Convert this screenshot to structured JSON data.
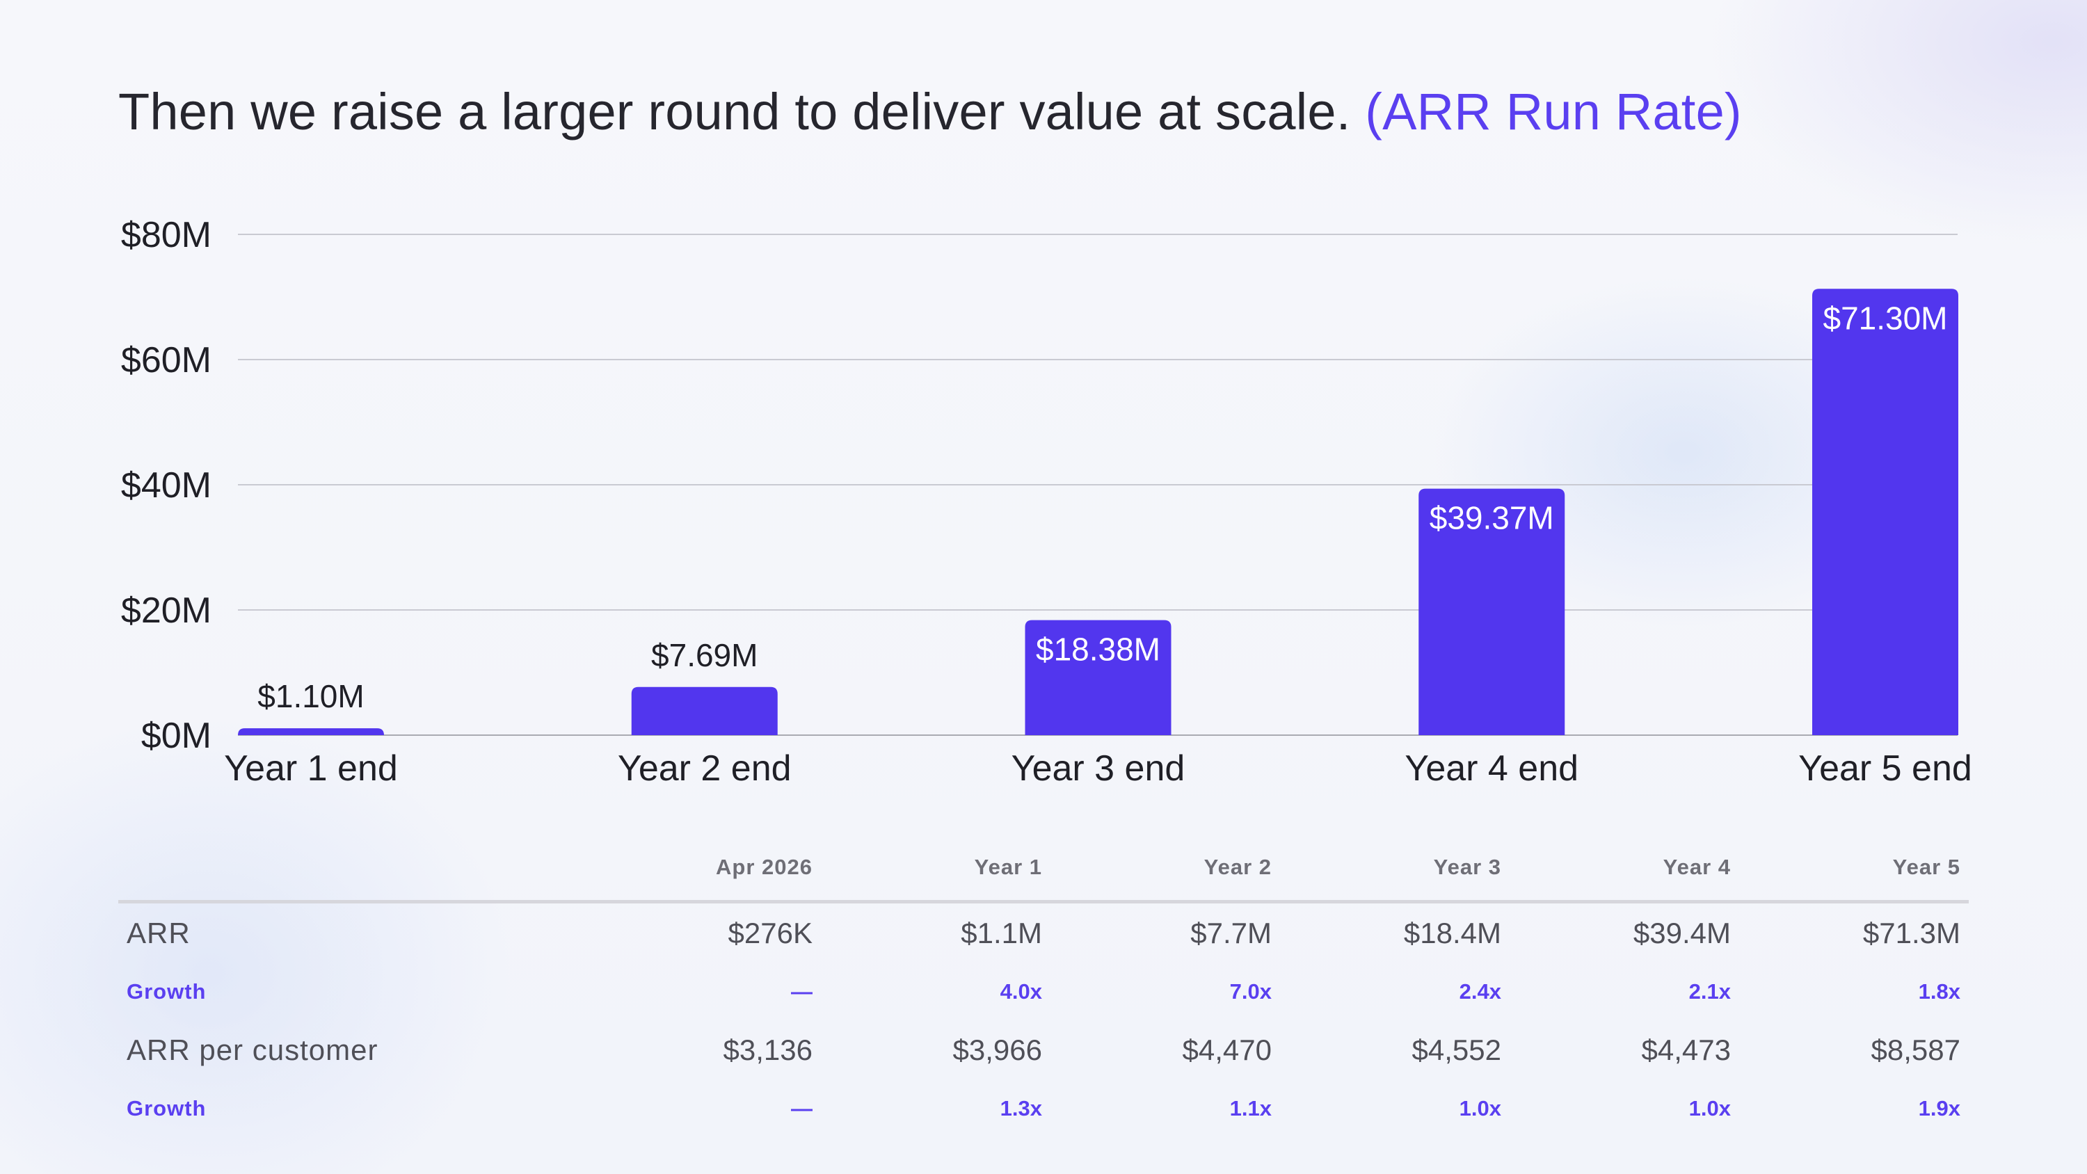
{
  "title": {
    "main": "Then we raise a larger round to deliver value at scale.",
    "accent": "(ARR Run Rate)"
  },
  "colors": {
    "accent": "#5a3ff0",
    "bar": "#5236ee",
    "text": "#26262e",
    "muted": "#6e6e76",
    "grid": "#c9cad2"
  },
  "chart_data": {
    "type": "bar",
    "categories": [
      "Year 1 end",
      "Year 2 end",
      "Year 3 end",
      "Year 4 end",
      "Year 5 end"
    ],
    "values": [
      1.1,
      7.69,
      18.38,
      39.37,
      71.3
    ],
    "data_labels": [
      "$1.10M",
      "$7.69M",
      "$18.38M",
      "$39.37M",
      "$71.30M"
    ],
    "unit": "M",
    "ylim": [
      0,
      80
    ],
    "yticks": [
      0,
      20,
      40,
      60,
      80
    ],
    "ytick_labels": [
      "$0M",
      "$20M",
      "$40M",
      "$60M",
      "$80M"
    ],
    "grid": true,
    "legend": "none"
  },
  "table": {
    "columns": [
      "",
      "Apr 2026",
      "Year 1",
      "Year 2",
      "Year 3",
      "Year 4",
      "Year 5"
    ],
    "rows": [
      {
        "kind": "main",
        "label": "ARR",
        "values": [
          "$276K",
          "$1.1M",
          "$7.7M",
          "$18.4M",
          "$39.4M",
          "$71.3M"
        ]
      },
      {
        "kind": "sub",
        "label": "Growth",
        "values": [
          "—",
          "4.0x",
          "7.0x",
          "2.4x",
          "2.1x",
          "1.8x"
        ]
      },
      {
        "kind": "main",
        "label": "ARR per customer",
        "values": [
          "$3,136",
          "$3,966",
          "$4,470",
          "$4,552",
          "$4,473",
          "$8,587"
        ]
      },
      {
        "kind": "sub",
        "label": "Growth",
        "values": [
          "—",
          "1.3x",
          "1.1x",
          "1.0x",
          "1.0x",
          "1.9x"
        ]
      }
    ]
  }
}
